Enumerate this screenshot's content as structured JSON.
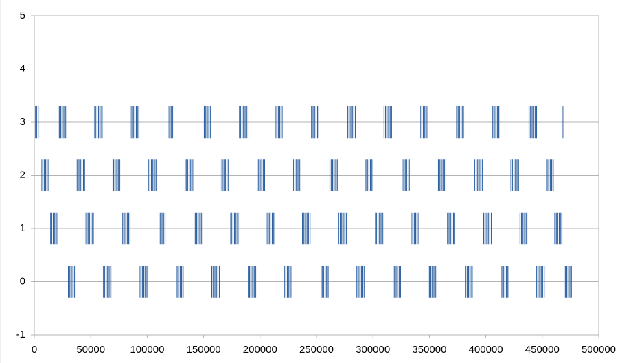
{
  "chart_data": {
    "type": "bursts",
    "color": "#2a5d9f",
    "grid": true,
    "xlim": [
      0,
      500000
    ],
    "xticks": [
      0,
      50000,
      100000,
      150000,
      200000,
      250000,
      300000,
      350000,
      400000,
      450000,
      500000
    ],
    "ylim": [
      -1,
      5
    ],
    "yticks": [
      -1,
      0,
      1,
      2,
      3,
      4,
      5
    ],
    "series": [
      {
        "ymin": 2.7,
        "ymax": 3.3,
        "x": [
          [
            600,
            4300
          ],
          [
            20700,
            28600
          ],
          [
            52900,
            60800
          ],
          [
            85200,
            93100
          ],
          [
            118000,
            124100
          ],
          [
            149000,
            156300
          ],
          [
            181300,
            189200
          ],
          [
            213500,
            220200
          ],
          [
            245100,
            252400
          ],
          [
            277400,
            284700
          ],
          [
            309000,
            316900
          ],
          [
            341900,
            349200
          ],
          [
            373500,
            380800
          ],
          [
            405100,
            413000
          ],
          [
            437400,
            445300
          ],
          [
            467800,
            469600
          ]
        ]
      },
      {
        "ymin": 1.7,
        "ymax": 2.3,
        "x": [
          [
            6100,
            12800
          ],
          [
            37100,
            45000
          ],
          [
            69300,
            76600
          ],
          [
            101000,
            108900
          ],
          [
            133200,
            141100
          ],
          [
            165400,
            172700
          ],
          [
            197700,
            204400
          ],
          [
            229300,
            236600
          ],
          [
            261500,
            269400
          ],
          [
            293200,
            300500
          ],
          [
            325400,
            332700
          ],
          [
            357100,
            365000
          ],
          [
            389300,
            397200
          ],
          [
            421600,
            429500
          ],
          [
            453800,
            460500
          ]
        ]
      },
      {
        "ymin": 0.7,
        "ymax": 1.3,
        "x": [
          [
            14000,
            20700
          ],
          [
            45000,
            52900
          ],
          [
            77300,
            85200
          ],
          [
            110100,
            116800
          ],
          [
            141700,
            149000
          ],
          [
            173400,
            181300
          ],
          [
            205600,
            212900
          ],
          [
            237200,
            245100
          ],
          [
            269500,
            277400
          ],
          [
            301800,
            309600
          ],
          [
            334000,
            341300
          ],
          [
            365600,
            372900
          ],
          [
            397200,
            405100
          ],
          [
            429500,
            436800
          ],
          [
            460500,
            467800
          ]
        ]
      },
      {
        "ymin": -0.3,
        "ymax": 0.3,
        "x": [
          [
            29800,
            36500
          ],
          [
            60800,
            68700
          ],
          [
            93100,
            101000
          ],
          [
            125900,
            132600
          ],
          [
            156900,
            164800
          ],
          [
            189200,
            197100
          ],
          [
            221400,
            228700
          ],
          [
            253700,
            261000
          ],
          [
            285300,
            292600
          ],
          [
            317500,
            324800
          ],
          [
            349200,
            357100
          ],
          [
            381400,
            388700
          ],
          [
            413600,
            420900
          ],
          [
            444700,
            452600
          ],
          [
            469600,
            476300
          ]
        ]
      }
    ]
  }
}
